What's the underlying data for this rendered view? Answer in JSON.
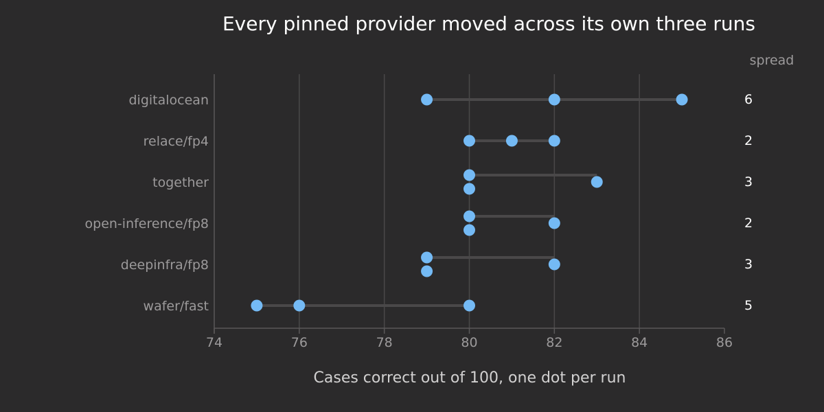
{
  "chart_data": {
    "type": "scatter",
    "title": "Every pinned provider moved across its own three runs",
    "xlabel": "Cases correct out of 100, one dot per run",
    "ylabel": "",
    "xlim": [
      74,
      86
    ],
    "xticks": [
      74,
      76,
      78,
      80,
      82,
      84,
      86
    ],
    "spread_header": "spread",
    "grid": "vertical",
    "colors": {
      "dot": "#74baf5",
      "range_line": "#4a4849",
      "background": "#2b2a2b"
    },
    "rows": [
      {
        "label": "digitalocean",
        "runs": [
          79,
          82,
          85
        ],
        "spread": "6"
      },
      {
        "label": "relace/fp4",
        "runs": [
          80,
          81,
          82
        ],
        "spread": "2"
      },
      {
        "label": "together",
        "runs": [
          80,
          80,
          83
        ],
        "spread": "3"
      },
      {
        "label": "open-inference/fp8",
        "runs": [
          80,
          80,
          82
        ],
        "spread": "2"
      },
      {
        "label": "deepinfra/fp8",
        "runs": [
          79,
          79,
          82
        ],
        "spread": "3"
      },
      {
        "label": "wafer/fast",
        "runs": [
          75,
          76,
          80
        ],
        "spread": "5"
      }
    ]
  }
}
